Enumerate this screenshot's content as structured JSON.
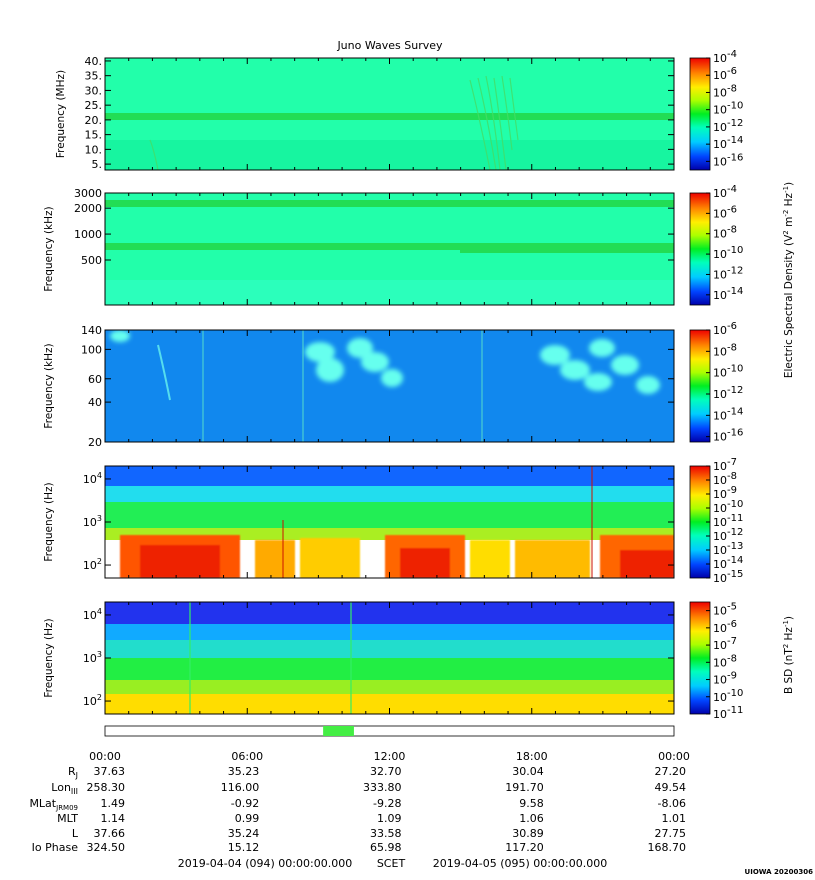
{
  "title": "Juno Waves Survey",
  "watermark": "UIOWA 20200306",
  "chart_data": [
    {
      "type": "heatmap",
      "name": "panel-hfwbr",
      "ylabel": "Frequency (MHz)",
      "ytick_labels": [
        "40.",
        "35.",
        "30.",
        "25.",
        "20.",
        "15.",
        "10.",
        "5."
      ],
      "ytick_values": [
        40,
        35,
        30,
        25,
        20,
        15,
        10,
        5
      ],
      "ylim": [
        3,
        41
      ],
      "yscale": "linear",
      "colorbar_labels": [
        "10-4",
        "10-6",
        "10-8",
        "10-10",
        "10-12",
        "10-14",
        "10-16"
      ],
      "colorbar_exponents": [
        -4,
        -6,
        -8,
        -10,
        -12,
        -14,
        -16
      ],
      "colorbar_range": [
        -17,
        -4
      ]
    },
    {
      "type": "heatmap",
      "name": "panel-hfr",
      "ylabel": "Frequency (kHz)",
      "ytick_labels": [
        "3000",
        "2000",
        "1000",
        "500"
      ],
      "ytick_values": [
        3000,
        2000,
        1000,
        500
      ],
      "ylim": [
        150,
        3000
      ],
      "yscale": "log",
      "colorbar_labels": [
        "10-4",
        "10-6",
        "10-8",
        "10-10",
        "10-12",
        "10-14"
      ],
      "colorbar_exponents": [
        -4,
        -6,
        -8,
        -10,
        -12,
        -14
      ],
      "colorbar_range": [
        -15,
        -4
      ]
    },
    {
      "type": "heatmap",
      "name": "panel-lfr",
      "ylabel": "Frequency (kHz)",
      "ytick_labels": [
        "140",
        "100",
        "60",
        "40",
        "20"
      ],
      "ytick_values": [
        140,
        100,
        60,
        40,
        20
      ],
      "ylim": [
        20,
        140
      ],
      "yscale": "log",
      "colorbar_labels": [
        "10-6",
        "10-8",
        "10-10",
        "10-12",
        "10-14",
        "10-16"
      ],
      "colorbar_exponents": [
        -6,
        -8,
        -10,
        -12,
        -14,
        -16
      ],
      "colorbar_range": [
        -16.5,
        -6
      ]
    },
    {
      "type": "heatmap",
      "name": "panel-lfr-e",
      "ylabel": "Frequency (Hz)",
      "ytick_labels": [
        "104",
        "103",
        "102"
      ],
      "ytick_exponents": [
        4,
        3,
        2
      ],
      "ylim": [
        50,
        20000
      ],
      "yscale": "log",
      "colorbar_labels": [
        "10-7",
        "10-8",
        "10-9",
        "10-10",
        "10-11",
        "10-12",
        "10-13",
        "10-14",
        "10-15"
      ],
      "colorbar_exponents": [
        -7,
        -8,
        -9,
        -10,
        -11,
        -12,
        -13,
        -14,
        -15
      ],
      "colorbar_range": [
        -15,
        -7
      ]
    },
    {
      "type": "heatmap",
      "name": "panel-lfr-b",
      "ylabel": "Frequency (Hz)",
      "ytick_labels": [
        "104",
        "103",
        "102"
      ],
      "ytick_exponents": [
        4,
        3,
        2
      ],
      "ylim": [
        50,
        20000
      ],
      "yscale": "log",
      "colorbar_labels": [
        "10-5",
        "10-6",
        "10-7",
        "10-8",
        "10-9",
        "10-10",
        "10-11"
      ],
      "colorbar_exponents": [
        -5,
        -6,
        -7,
        -8,
        -9,
        -10,
        -11
      ],
      "colorbar_range": [
        -11,
        -4.5
      ]
    }
  ],
  "colorbar_titles": {
    "electric": "Electric Spectral Density (V2 m-2 Hz-1)",
    "magnetic": "B SD (nT2 Hz-1)"
  },
  "time_axis": {
    "ticks": [
      "00:00",
      "06:00",
      "12:00",
      "18:00",
      "00:00"
    ],
    "tick_hours": [
      0,
      6,
      12,
      18,
      24
    ],
    "range_hours": [
      0,
      24
    ],
    "highlight_hours": [
      9.2,
      10.5
    ],
    "highlight_color": "#44ee44"
  },
  "ephemeris": [
    {
      "label": "RJ",
      "values": [
        "37.63",
        "35.23",
        "32.70",
        "30.04",
        "27.20"
      ]
    },
    {
      "label": "LonIII",
      "values": [
        "258.30",
        "116.00",
        "333.80",
        "191.70",
        "49.54"
      ]
    },
    {
      "label": "MLatJRM09",
      "values": [
        "1.49",
        "-0.92",
        "-9.28",
        "9.58",
        "-8.06"
      ]
    },
    {
      "label": "MLT",
      "values": [
        "1.14",
        "0.99",
        "1.09",
        "1.06",
        "1.01"
      ]
    },
    {
      "label": "L",
      "values": [
        "37.66",
        "35.24",
        "33.58",
        "30.89",
        "27.75"
      ]
    },
    {
      "label": "Io Phase",
      "values": [
        "324.50",
        "15.12",
        "65.98",
        "117.20",
        "168.70"
      ]
    }
  ],
  "footer": {
    "start": "2019-04-04 (094) 00:00:00.000",
    "scet": "SCET",
    "end": "2019-04-05 (095) 00:00:00.000"
  }
}
